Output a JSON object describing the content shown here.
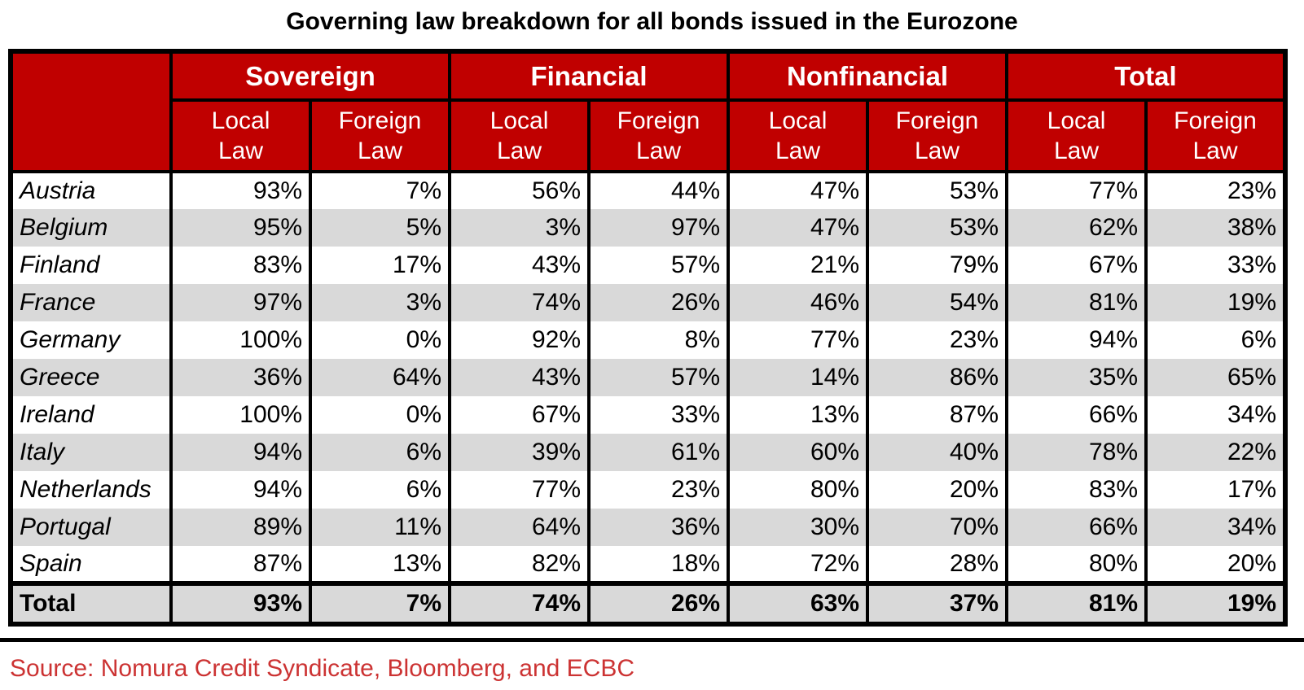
{
  "title": "Governing law breakdown for all bonds issued in the Eurozone",
  "source": "Source: Nomura Credit Syndicate, Bloomberg, and ECBC",
  "colors": {
    "header_red": "#C00000",
    "row_alt_gray": "#D9D9D9",
    "border_black": "#000000",
    "source_red": "#CC3333",
    "header_text": "#FFFFFF"
  },
  "table": {
    "groups": [
      {
        "label": "Sovereign"
      },
      {
        "label": "Financial"
      },
      {
        "label": "Nonfinancial"
      },
      {
        "label": "Total"
      }
    ],
    "subheaders": [
      "Local Law",
      "Foreign Law"
    ],
    "rows": [
      {
        "country": "Austria",
        "values": [
          "93%",
          "7%",
          "56%",
          "44%",
          "47%",
          "53%",
          "77%",
          "23%"
        ]
      },
      {
        "country": "Belgium",
        "values": [
          "95%",
          "5%",
          "3%",
          "97%",
          "47%",
          "53%",
          "62%",
          "38%"
        ]
      },
      {
        "country": "Finland",
        "values": [
          "83%",
          "17%",
          "43%",
          "57%",
          "21%",
          "79%",
          "67%",
          "33%"
        ]
      },
      {
        "country": "France",
        "values": [
          "97%",
          "3%",
          "74%",
          "26%",
          "46%",
          "54%",
          "81%",
          "19%"
        ]
      },
      {
        "country": "Germany",
        "values": [
          "100%",
          "0%",
          "92%",
          "8%",
          "77%",
          "23%",
          "94%",
          "6%"
        ]
      },
      {
        "country": "Greece",
        "values": [
          "36%",
          "64%",
          "43%",
          "57%",
          "14%",
          "86%",
          "35%",
          "65%"
        ]
      },
      {
        "country": "Ireland",
        "values": [
          "100%",
          "0%",
          "67%",
          "33%",
          "13%",
          "87%",
          "66%",
          "34%"
        ]
      },
      {
        "country": "Italy",
        "values": [
          "94%",
          "6%",
          "39%",
          "61%",
          "60%",
          "40%",
          "78%",
          "22%"
        ]
      },
      {
        "country": "Netherlands",
        "values": [
          "94%",
          "6%",
          "77%",
          "23%",
          "80%",
          "20%",
          "83%",
          "17%"
        ]
      },
      {
        "country": "Portugal",
        "values": [
          "89%",
          "11%",
          "64%",
          "36%",
          "30%",
          "70%",
          "66%",
          "34%"
        ]
      },
      {
        "country": "Spain",
        "values": [
          "87%",
          "13%",
          "82%",
          "18%",
          "72%",
          "28%",
          "80%",
          "20%"
        ]
      }
    ],
    "total_row": {
      "label": "Total",
      "values": [
        "93%",
        "7%",
        "74%",
        "26%",
        "63%",
        "37%",
        "81%",
        "19%"
      ]
    }
  },
  "chart_data": {
    "type": "table",
    "title": "Governing law breakdown for all bonds issued in the Eurozone",
    "unit": "%",
    "columns": [
      "Sovereign Local Law",
      "Sovereign Foreign Law",
      "Financial Local Law",
      "Financial Foreign Law",
      "Nonfinancial Local Law",
      "Nonfinancial Foreign Law",
      "Total Local Law",
      "Total Foreign Law"
    ],
    "rows": [
      {
        "name": "Austria",
        "values": [
          93,
          7,
          56,
          44,
          47,
          53,
          77,
          23
        ]
      },
      {
        "name": "Belgium",
        "values": [
          95,
          5,
          3,
          97,
          47,
          53,
          62,
          38
        ]
      },
      {
        "name": "Finland",
        "values": [
          83,
          17,
          43,
          57,
          21,
          79,
          67,
          33
        ]
      },
      {
        "name": "France",
        "values": [
          97,
          3,
          74,
          26,
          46,
          54,
          81,
          19
        ]
      },
      {
        "name": "Germany",
        "values": [
          100,
          0,
          92,
          8,
          77,
          23,
          94,
          6
        ]
      },
      {
        "name": "Greece",
        "values": [
          36,
          64,
          43,
          57,
          14,
          86,
          35,
          65
        ]
      },
      {
        "name": "Ireland",
        "values": [
          100,
          0,
          67,
          33,
          13,
          87,
          66,
          34
        ]
      },
      {
        "name": "Italy",
        "values": [
          94,
          6,
          39,
          61,
          60,
          40,
          78,
          22
        ]
      },
      {
        "name": "Netherlands",
        "values": [
          94,
          6,
          77,
          23,
          80,
          20,
          83,
          17
        ]
      },
      {
        "name": "Portugal",
        "values": [
          89,
          11,
          64,
          36,
          30,
          70,
          66,
          34
        ]
      },
      {
        "name": "Spain",
        "values": [
          87,
          13,
          82,
          18,
          72,
          28,
          80,
          20
        ]
      }
    ],
    "total": {
      "name": "Total",
      "values": [
        93,
        7,
        74,
        26,
        63,
        37,
        81,
        19
      ]
    },
    "source": "Source: Nomura Credit Syndicate, Bloomberg, and ECBC"
  }
}
